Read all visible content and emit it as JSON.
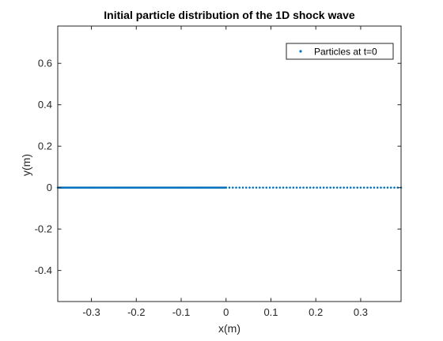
{
  "chart_data": {
    "type": "scatter",
    "title": "Initial particle distribution of the 1D shock wave",
    "xlabel": "x(m)",
    "ylabel": "y(m)",
    "xlim": [
      -0.375,
      0.39
    ],
    "ylim": [
      -0.55,
      0.78
    ],
    "xticks": [
      -0.3,
      -0.2,
      -0.1,
      0,
      0.1,
      0.2,
      0.3
    ],
    "xtick_labels": [
      "-0.3",
      "-0.2",
      "-0.1",
      "0",
      "0.1",
      "0.2",
      "0.3"
    ],
    "yticks": [
      -0.4,
      -0.2,
      0,
      0.2,
      0.4,
      0.6
    ],
    "ytick_labels": [
      "-0.4",
      "-0.2",
      "0",
      "0.2",
      "0.4",
      "0.6"
    ],
    "grid": false,
    "legend_position": "top-right",
    "series": [
      {
        "name": "Particles at t=0",
        "color": "#0072BD",
        "marker": "dot",
        "segments": [
          {
            "x_start": -0.375,
            "x_end": 0.0,
            "spacing": 0.001875,
            "y": 0
          },
          {
            "x_start": 0.0,
            "x_end": 0.39,
            "spacing": 0.0075,
            "y": 0
          }
        ]
      }
    ]
  }
}
